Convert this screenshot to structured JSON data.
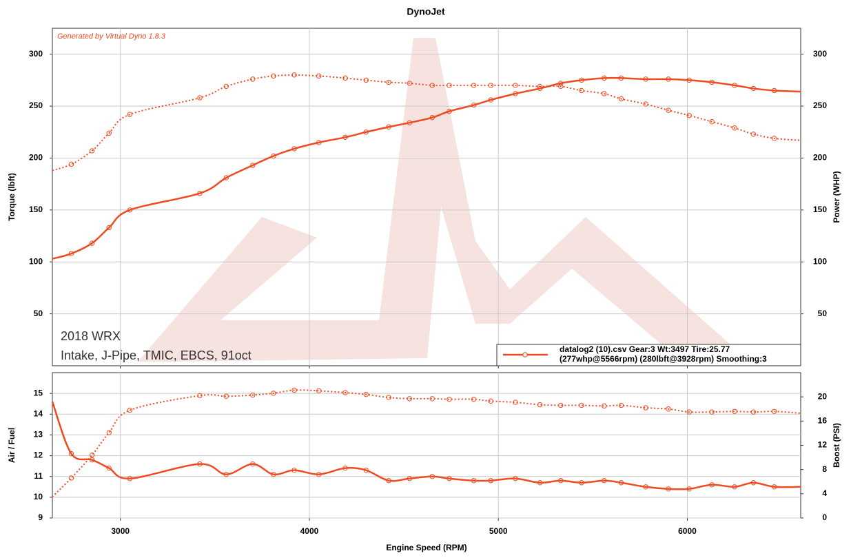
{
  "chart_data": [
    {
      "type": "line",
      "title": "DynoJet",
      "ylabel": "Torque (lbft)",
      "y2label": "Power (WHP)",
      "annotations": [
        "Generated by Virtual Dyno 1.8.3",
        "2018 WRX",
        "Intake, J-Pipe, TMIC, EBCS, 91oct"
      ],
      "legend": [
        "datalog2 (10).csv Gear:3 Wt:3497 Tire:25.77",
        "(277whp@5566rpm) (280lbft@3928rpm) Smoothing:3"
      ],
      "x": [
        2640,
        2740,
        2850,
        2940,
        3050,
        3420,
        3560,
        3700,
        3810,
        3920,
        4050,
        4190,
        4300,
        4420,
        4530,
        4650,
        4740,
        4870,
        4960,
        5090,
        5220,
        5330,
        5440,
        5560,
        5650,
        5780,
        5900,
        6010,
        6130,
        6250,
        6350,
        6460,
        6600
      ],
      "series": [
        {
          "color": "#f04a20",
          "style": "dotted",
          "values": [
            188,
            194,
            207,
            224,
            242,
            258,
            269,
            276,
            279,
            280,
            279,
            277,
            275,
            273,
            272,
            270,
            270,
            270,
            270,
            270,
            269,
            269,
            265,
            262,
            257,
            252,
            246,
            241,
            235,
            229,
            223,
            219,
            217
          ]
        },
        {
          "color": "#f04a20",
          "style": "solid",
          "axis": "y2",
          "values": [
            103,
            108,
            118,
            133,
            150,
            166,
            181,
            193,
            202,
            209,
            215,
            220,
            225,
            230,
            234,
            239,
            245,
            251,
            256,
            262,
            267,
            272,
            275,
            277,
            277,
            276,
            276,
            275,
            273,
            270,
            267,
            265,
            264
          ]
        }
      ],
      "xlim": [
        2640,
        6600
      ],
      "xticks": [
        3000,
        4000,
        5000,
        6000
      ],
      "ylim": [
        0,
        325
      ],
      "yticks": [
        50,
        100,
        150,
        200,
        250,
        300
      ],
      "y2lim": [
        0,
        325
      ],
      "y2ticks": [
        50,
        100,
        150,
        200,
        250,
        300
      ],
      "grid": true
    },
    {
      "type": "line",
      "xlabel": "Engine Speed (RPM)",
      "ylabel": "Air / Fuel",
      "y2label": "Boost (PSI)",
      "x": [
        2640,
        2740,
        2850,
        2940,
        3050,
        3420,
        3560,
        3700,
        3810,
        3920,
        4050,
        4190,
        4300,
        4420,
        4530,
        4650,
        4740,
        4870,
        4960,
        5090,
        5220,
        5330,
        5440,
        5560,
        5650,
        5780,
        5900,
        6010,
        6130,
        6250,
        6350,
        6460,
        6600
      ],
      "series": [
        {
          "color": "#f04a20",
          "style": "solid",
          "values": [
            14.6,
            12.1,
            11.8,
            11.4,
            10.9,
            11.6,
            11.1,
            11.6,
            11.1,
            11.3,
            11.1,
            11.4,
            11.3,
            10.8,
            10.9,
            11.0,
            10.9,
            10.8,
            10.8,
            10.9,
            10.7,
            10.8,
            10.7,
            10.8,
            10.7,
            10.5,
            10.4,
            10.4,
            10.6,
            10.5,
            10.7,
            10.5,
            10.5
          ]
        },
        {
          "color": "#f04a20",
          "style": "dotted",
          "axis": "y2",
          "values": [
            3.5,
            6.6,
            10.4,
            14.1,
            17.8,
            20.2,
            20.1,
            20.3,
            20.6,
            21.1,
            21.0,
            20.7,
            20.4,
            19.9,
            19.7,
            19.7,
            19.6,
            19.6,
            19.3,
            19.1,
            18.7,
            18.6,
            18.6,
            18.5,
            18.6,
            18.2,
            18.0,
            17.5,
            17.5,
            17.6,
            17.5,
            17.6,
            17.3
          ]
        }
      ],
      "xlim": [
        2640,
        6600
      ],
      "xticks": [
        3000,
        4000,
        5000,
        6000
      ],
      "ylim": [
        9,
        16
      ],
      "yticks": [
        9,
        10,
        11,
        12,
        13,
        14,
        15
      ],
      "y2lim": [
        0,
        24
      ],
      "y2ticks": [
        0,
        4,
        8,
        12,
        16,
        20
      ],
      "grid": true
    }
  ]
}
